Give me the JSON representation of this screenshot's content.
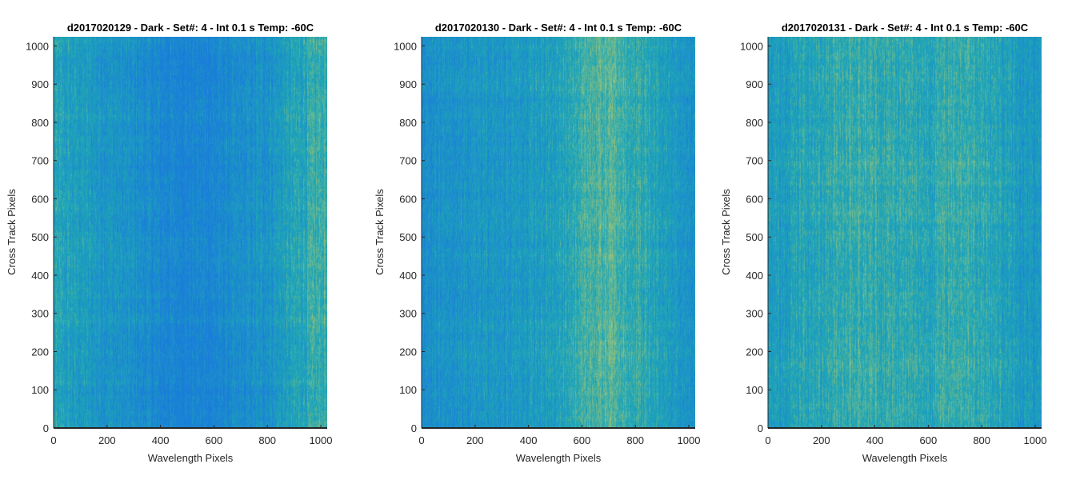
{
  "colors": {
    "colormap_low": "#1a7ed9",
    "colormap_mid": "#1fa7b6",
    "colormap_high": "#b9c96a",
    "axis": "#262626",
    "title": "#000000"
  },
  "chart_data": [
    {
      "type": "heatmap",
      "title": "d2017020129 - Dark - Set#: 4 - Int 0.1 s Temp: -60C",
      "xlabel": "Wavelength Pixels",
      "ylabel": "Cross Track Pixels",
      "xlim": [
        0,
        1024
      ],
      "ylim": [
        0,
        1024
      ],
      "xticks": [
        0,
        200,
        400,
        600,
        800,
        1000
      ],
      "yticks": [
        0,
        100,
        200,
        300,
        400,
        500,
        600,
        700,
        800,
        900,
        1000
      ],
      "column_profile": {
        "x": [
          0,
          100,
          200,
          300,
          400,
          500,
          600,
          700,
          800,
          900,
          1000,
          1024
        ],
        "relative_level": [
          0.45,
          0.38,
          0.3,
          0.22,
          0.12,
          0.08,
          0.1,
          0.18,
          0.28,
          0.45,
          0.58,
          0.6
        ]
      },
      "grid": false
    },
    {
      "type": "heatmap",
      "title": "d2017020130 - Dark - Set#: 4 - Int 0.1 s Temp: -60C",
      "xlabel": "Wavelength Pixels",
      "ylabel": "Cross Track Pixels",
      "xlim": [
        0,
        1024
      ],
      "ylim": [
        0,
        1024
      ],
      "xticks": [
        0,
        200,
        400,
        600,
        800,
        1000
      ],
      "yticks": [
        0,
        100,
        200,
        300,
        400,
        500,
        600,
        700,
        800,
        900,
        1000
      ],
      "column_profile": {
        "x": [
          0,
          100,
          200,
          300,
          400,
          500,
          600,
          700,
          800,
          900,
          1000,
          1024
        ],
        "relative_level": [
          0.22,
          0.26,
          0.3,
          0.33,
          0.36,
          0.4,
          0.62,
          0.68,
          0.56,
          0.42,
          0.3,
          0.28
        ]
      },
      "grid": false
    },
    {
      "type": "heatmap",
      "title": "d2017020131 - Dark - Set#: 4 - Int 0.1 s Temp: -60C",
      "xlabel": "Wavelength Pixels",
      "ylabel": "Cross Track Pixels",
      "xlim": [
        0,
        1024
      ],
      "ylim": [
        0,
        1024
      ],
      "xticks": [
        0,
        200,
        400,
        600,
        800,
        1000
      ],
      "yticks": [
        0,
        100,
        200,
        300,
        400,
        500,
        600,
        700,
        800,
        900,
        1000
      ],
      "column_profile": {
        "x": [
          0,
          100,
          200,
          300,
          400,
          500,
          600,
          700,
          800,
          900,
          1000,
          1024
        ],
        "relative_level": [
          0.35,
          0.45,
          0.5,
          0.58,
          0.55,
          0.52,
          0.5,
          0.58,
          0.55,
          0.4,
          0.3,
          0.28
        ]
      },
      "grid": false
    }
  ]
}
